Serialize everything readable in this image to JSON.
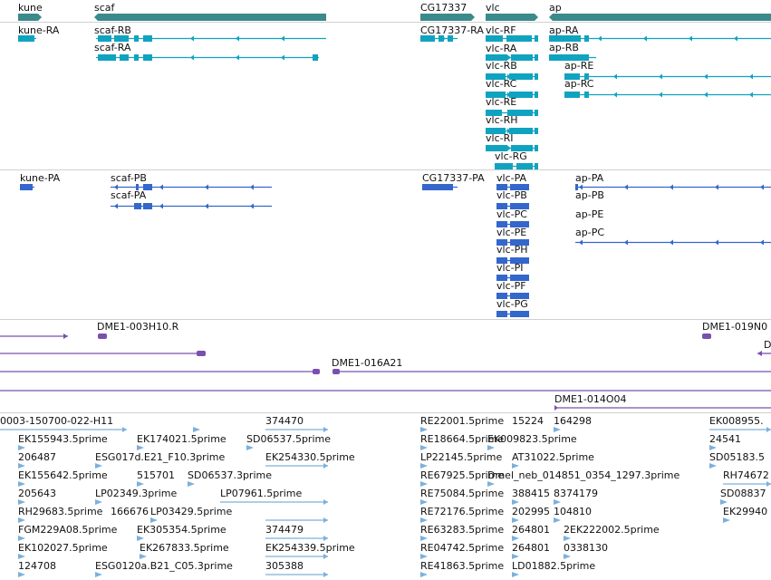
{
  "colors": {
    "gene": "#3b8a8c",
    "transcript": "#10a3c0",
    "protein": "#3467cc",
    "clone": "#7a4fb0",
    "est": "#7cb0dc",
    "separator": "#d0d0d0",
    "text": "#111111"
  },
  "genes": [
    {
      "label": "kune",
      "dir": "right"
    },
    {
      "label": "scaf",
      "dir": "left"
    },
    {
      "label": "CG17337",
      "dir": "right"
    },
    {
      "label": "vlc",
      "dir": "right"
    },
    {
      "label": "ap",
      "dir": "left"
    }
  ],
  "transcripts": [
    "kune-RA",
    "scaf-RB",
    "scaf-RA",
    "CG17337-RA",
    "vlc-RF",
    "vlc-RA",
    "vlc-RB",
    "vlc-RC",
    "vlc-RE",
    "vlc-RH",
    "vlc-RI",
    "vlc-RG",
    "ap-RA",
    "ap-RB",
    "ap-RE",
    "ap-RC"
  ],
  "proteins": [
    "kune-PA",
    "scaf-PB",
    "scaf-PA",
    "CG17337-PA",
    "vlc-PA",
    "vlc-PB",
    "vlc-PC",
    "vlc-PE",
    "vlc-PH",
    "vlc-PI",
    "vlc-PF",
    "vlc-PG",
    "ap-PA",
    "ap-PB",
    "ap-PE",
    "ap-PC"
  ],
  "clones": [
    "DME1-003H10.R",
    "DME1-019N0",
    "D",
    "DME1-016A21",
    "DME1-014O04"
  ],
  "ests": [
    "0003-150700-022-H11",
    "374470",
    "RE22001.5prime",
    "15224",
    "164298",
    "EK008955.",
    "EK155943.5prime",
    "EK174021.5prime",
    "SD06537.5prime",
    "RE18664.5prime",
    "EK009823.5prime",
    "24541",
    "206487",
    "ESG017d.E21_F10.3prime",
    "EK254330.5prime",
    "LP22145.5prime",
    "AT31022.5prime",
    "SD05183.5",
    "EK155642.5prime",
    "515701",
    "SD06537.3prime",
    "RE67925.5prime",
    "Dmel_neb_014851_0354_1297.3prime",
    "RH74672",
    "205643",
    "LP02349.3prime",
    "LP07961.5prime",
    "RE75084.5prime",
    "388415",
    "8374179",
    "SD08837",
    "RH29683.5prime",
    "166676",
    "LP03429.5prime",
    "RE72176.5prime",
    "202995",
    "104810",
    "EK29940",
    "FGM229A08.5prime",
    "EK305354.5prime",
    "374479",
    "RE63283.5prime",
    "264801",
    "2EK222002.5prime",
    "EK102027.5prime",
    "EK267833.5prime",
    "EK254339.5prime",
    "RE04742.5prime",
    "264801",
    "0338130",
    "124708",
    "ESG0120a.B21_C05.3prime",
    "305388",
    "RE41863.5prime",
    "LD01882.5prime"
  ]
}
